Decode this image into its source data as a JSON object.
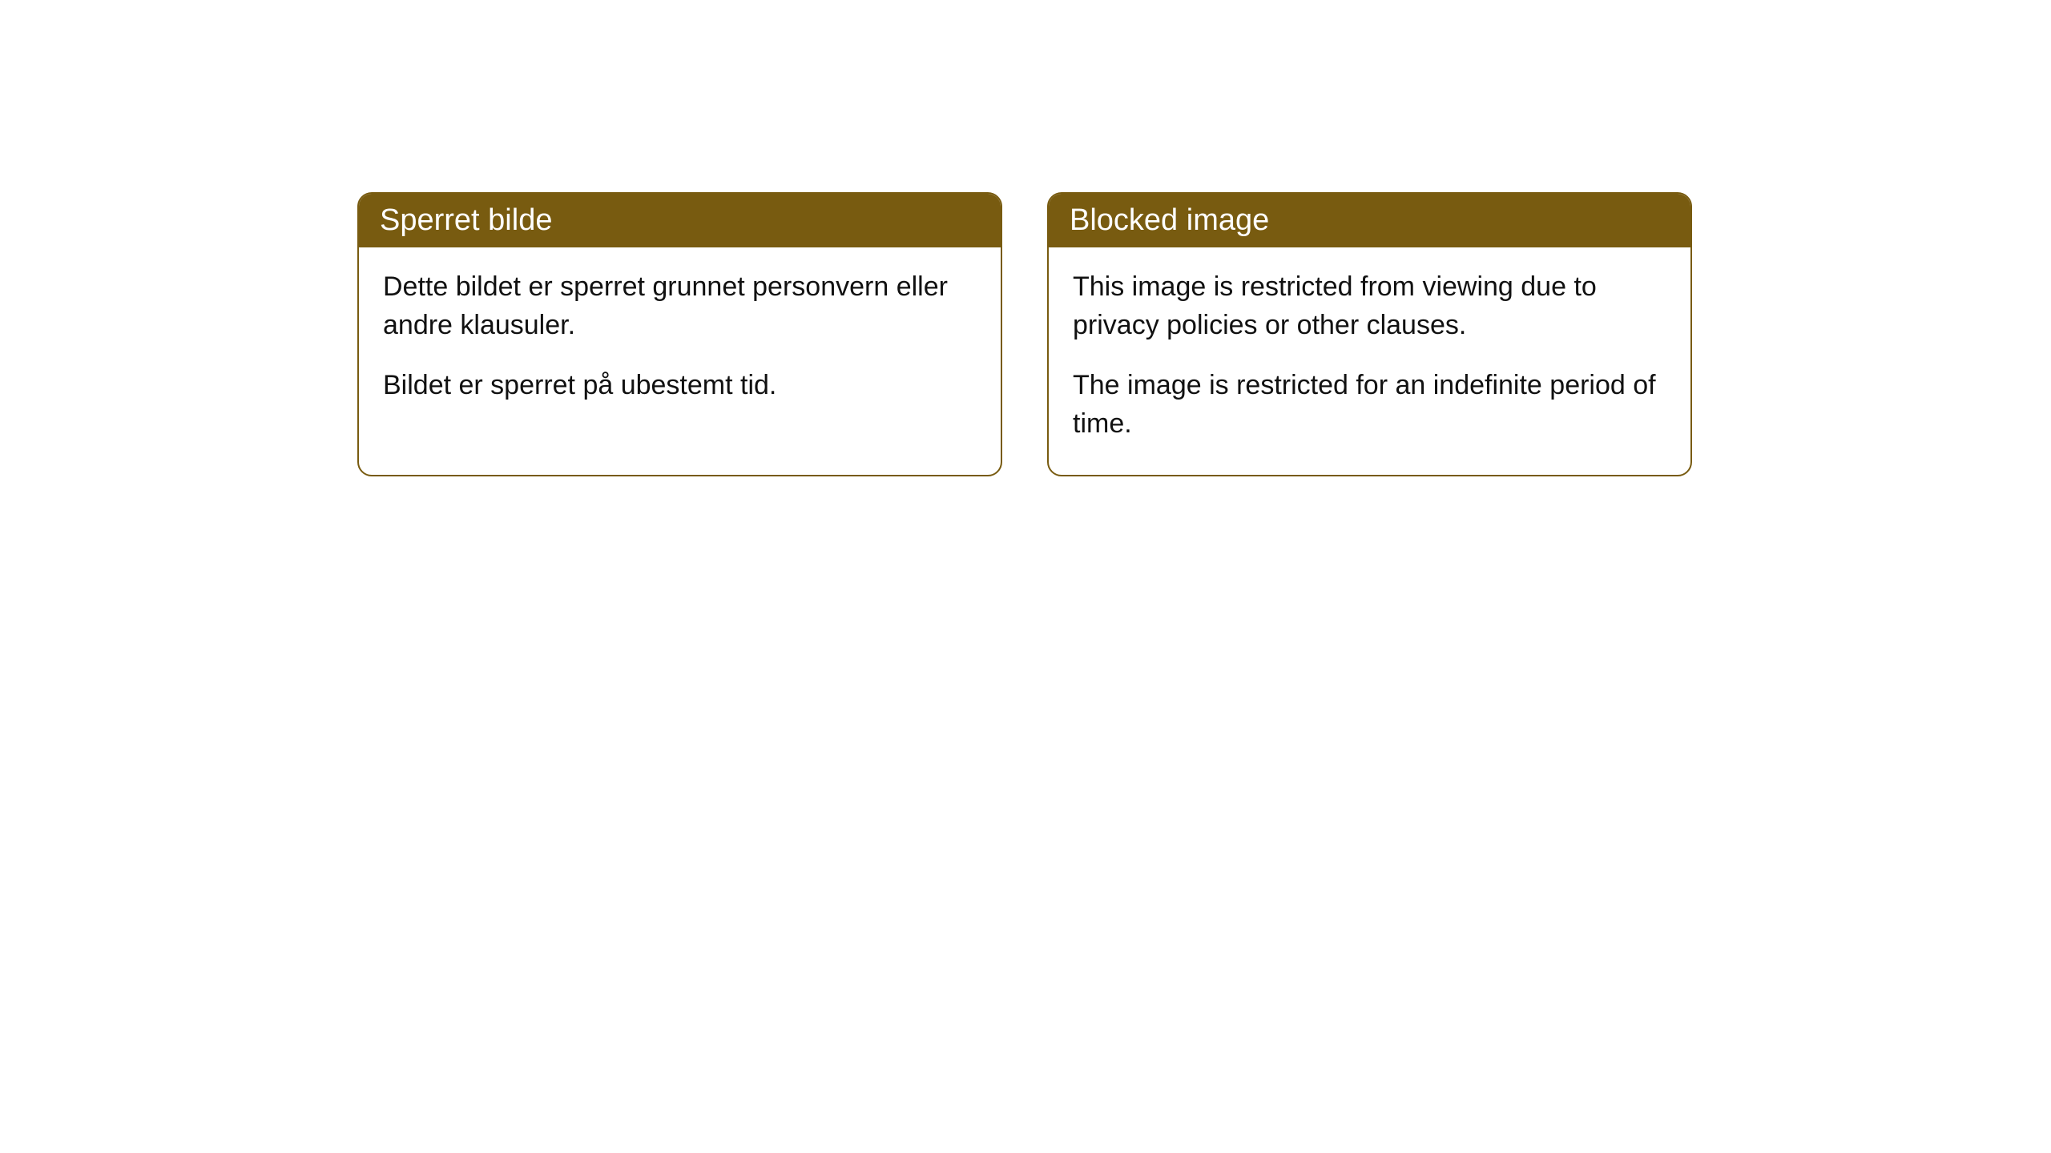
{
  "cards": [
    {
      "title": "Sperret bilde",
      "paragraph1": "Dette bildet er sperret grunnet personvern eller andre klausuler.",
      "paragraph2": "Bildet er sperret på ubestemt tid."
    },
    {
      "title": "Blocked image",
      "paragraph1": "This image is restricted from viewing due to privacy policies or other clauses.",
      "paragraph2": "The image is restricted for an indefinite period of time."
    }
  ],
  "styling": {
    "header_background": "#785b10",
    "header_text_color": "#ffffff",
    "border_color": "#785b10",
    "body_text_color": "#111111",
    "card_background": "#ffffff",
    "page_background": "#ffffff",
    "border_radius": "18px",
    "title_fontsize": 38,
    "body_fontsize": 34
  }
}
